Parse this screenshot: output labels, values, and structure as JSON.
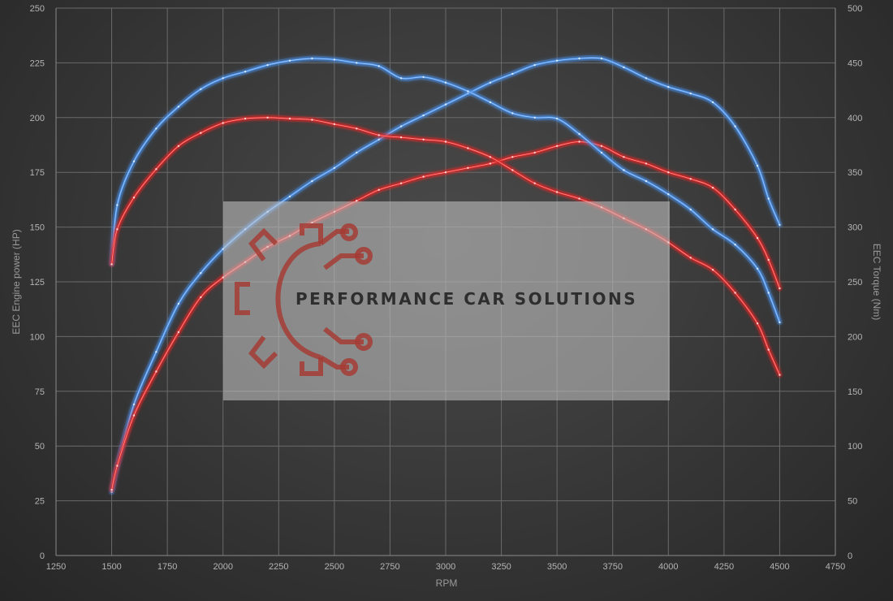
{
  "chart_data": {
    "type": "line",
    "xlabel": "RPM",
    "ylabel_left": "EEC Engine power (HP)",
    "ylabel_right": "EEC Torque (Nm)",
    "xlim": [
      1250,
      4750
    ],
    "ylim_left": [
      0,
      250
    ],
    "ylim_right": [
      0,
      500
    ],
    "xticks": [
      "1250",
      "1500",
      "1750",
      "2000",
      "2250",
      "2500",
      "2750",
      "3000",
      "3250",
      "3500",
      "3750",
      "4000",
      "4250",
      "4500",
      "4750"
    ],
    "yticks_left": [
      "0",
      "25",
      "50",
      "75",
      "100",
      "125",
      "150",
      "175",
      "200",
      "225",
      "250"
    ],
    "yticks_right": [
      "0",
      "50",
      "100",
      "150",
      "200",
      "250",
      "300",
      "350",
      "400",
      "450",
      "500"
    ],
    "grid": true,
    "series": [
      {
        "axis": "left",
        "color": "#4a90e8",
        "x": [
          1500,
          1525,
          1600,
          1700,
          1800,
          1900,
          2000,
          2100,
          2200,
          2300,
          2400,
          2500,
          2600,
          2700,
          2800,
          2900,
          3000,
          3100,
          3200,
          3300,
          3400,
          3500,
          3600,
          3700,
          3800,
          3900,
          4000,
          4100,
          4200,
          4300,
          4400,
          4450,
          4500
        ],
        "values": [
          29,
          41,
          69,
          93,
          115,
          129,
          140,
          149,
          157,
          164,
          171,
          177,
          184,
          190,
          196,
          201,
          206,
          211,
          216,
          220,
          224,
          226,
          227,
          227,
          223,
          218,
          214,
          211,
          207,
          196,
          178,
          163,
          151
        ]
      },
      {
        "axis": "left",
        "color": "#e02828",
        "x": [
          1500,
          1525,
          1600,
          1700,
          1800,
          1900,
          2000,
          2100,
          2200,
          2300,
          2400,
          2500,
          2600,
          2700,
          2800,
          2900,
          3000,
          3100,
          3200,
          3300,
          3400,
          3500,
          3600,
          3700,
          3800,
          3900,
          4000,
          4100,
          4200,
          4300,
          4400,
          4450,
          4500
        ],
        "values": [
          30,
          41,
          64,
          84,
          102,
          118,
          127,
          134,
          141,
          146,
          152,
          157,
          162,
          167,
          170,
          173,
          175,
          177,
          179,
          182,
          184,
          187,
          189,
          187,
          182,
          179,
          175,
          172,
          168,
          158,
          145,
          135,
          122
        ]
      },
      {
        "axis": "right",
        "color": "#4a90e8",
        "x": [
          1500,
          1525,
          1600,
          1700,
          1800,
          1900,
          2000,
          2100,
          2200,
          2300,
          2400,
          2500,
          2600,
          2700,
          2800,
          2900,
          3000,
          3100,
          3200,
          3300,
          3400,
          3500,
          3600,
          3700,
          3800,
          3900,
          4000,
          4100,
          4200,
          4300,
          4400,
          4450,
          4500
        ],
        "values": [
          266,
          320,
          360,
          390,
          410,
          426,
          436,
          442,
          448,
          452,
          454,
          453,
          450,
          447,
          436,
          437,
          432,
          424,
          414,
          404,
          400,
          399,
          385,
          368,
          352,
          342,
          330,
          316,
          298,
          284,
          262,
          240,
          213
        ]
      },
      {
        "axis": "right",
        "color": "#e02828",
        "x": [
          1500,
          1525,
          1600,
          1700,
          1800,
          1900,
          2000,
          2100,
          2200,
          2300,
          2400,
          2500,
          2600,
          2700,
          2800,
          2900,
          3000,
          3100,
          3200,
          3300,
          3400,
          3500,
          3600,
          3700,
          3800,
          3900,
          4000,
          4100,
          4200,
          4300,
          4400,
          4450,
          4500
        ],
        "values": [
          266,
          298,
          327,
          353,
          374,
          386,
          395,
          399,
          400,
          399,
          398,
          394,
          390,
          384,
          382,
          380,
          378,
          372,
          364,
          352,
          340,
          332,
          326,
          318,
          308,
          298,
          286,
          272,
          261,
          240,
          212,
          188,
          165
        ]
      }
    ]
  },
  "watermark": {
    "text": "PERFORMANCE CAR SOLUTIONS"
  }
}
